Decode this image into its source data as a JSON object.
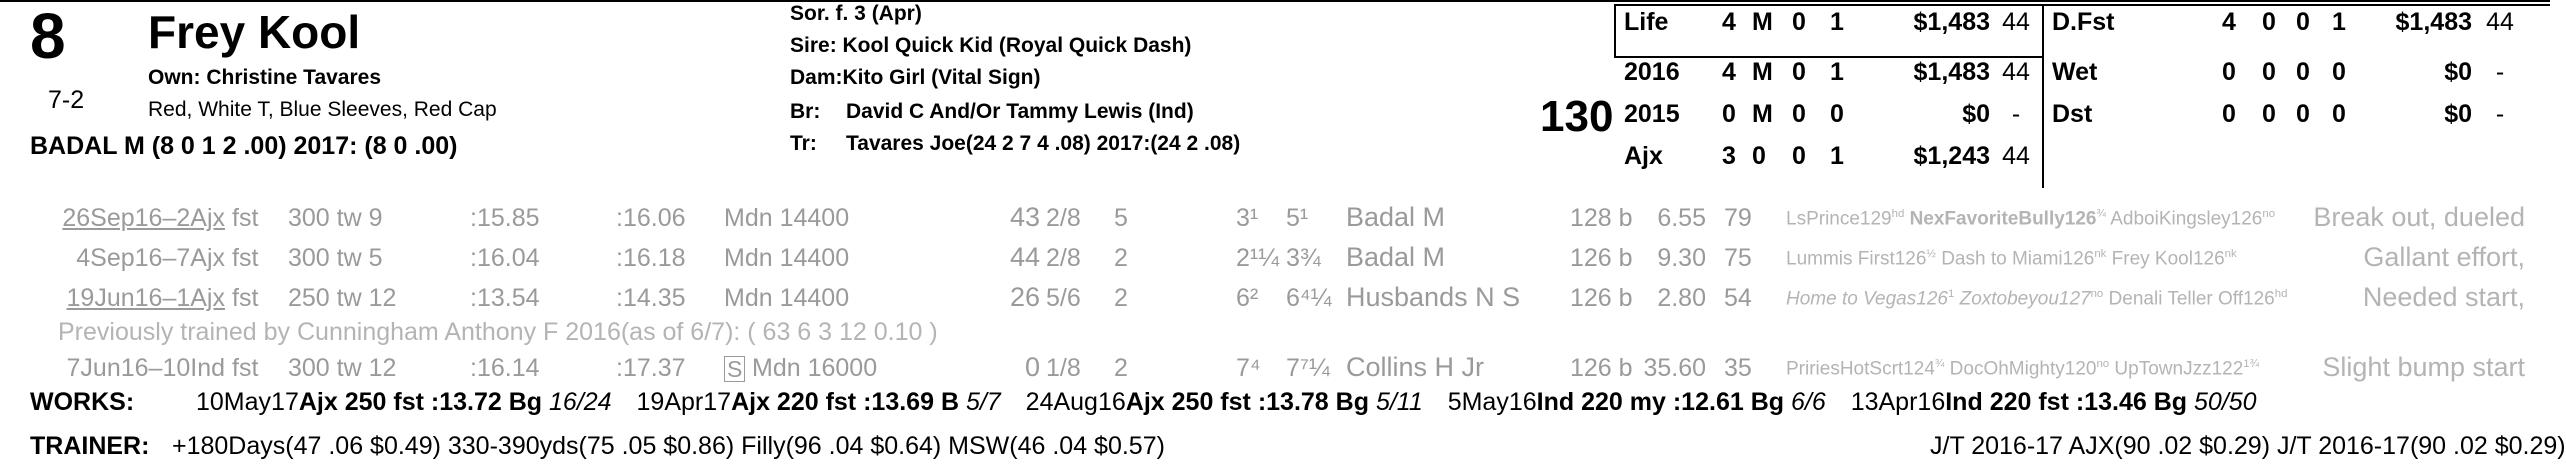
{
  "header": {
    "program_number": "8",
    "horse_name": "Frey Kool",
    "odds": "7-2",
    "owner_label": "Own: Christine Tavares",
    "silks": "Red, White T, Blue Sleeves, Red Cap",
    "jockey": "BADAL M (8 0 1 2 .00) 2017: (8 0 .00)",
    "sex_age": "Sor. f. 3 (Apr)",
    "sire": "Sire: Kool Quick Kid (Royal Quick Dash)",
    "dam": "Dam:Kito Girl (Vital Sign)",
    "breeder_label": "Br:",
    "breeder": "David C And/Or Tammy Lewis (Ind)",
    "trainer_label": "Tr:",
    "trainer": "Tavares Joe(24 2 7 4 .08)  2017:(24 2 .08)",
    "weight": "130"
  },
  "records": [
    {
      "label": "Life",
      "starts": "4",
      "w": "M",
      "p": "0",
      "s": "1",
      "earnings": "$1,483",
      "speed": "44"
    },
    {
      "label": "2016",
      "starts": "4",
      "w": "M",
      "p": "0",
      "s": "1",
      "earnings": "$1,483",
      "speed": "44"
    },
    {
      "label": "2015",
      "starts": "0",
      "w": "M",
      "p": "0",
      "s": "0",
      "earnings": "$0",
      "speed": "-"
    },
    {
      "label": "Ajx",
      "starts": "3",
      "w": "0",
      "p": "0",
      "s": "1",
      "earnings": "$1,243",
      "speed": "44"
    }
  ],
  "surfaces": [
    {
      "label": "D.Fst",
      "starts": "4",
      "w": "0",
      "p": "0",
      "s": "1",
      "earnings": "$1,483",
      "speed": "44"
    },
    {
      "label": "Wet",
      "starts": "0",
      "w": "0",
      "p": "0",
      "s": "0",
      "earnings": "$0",
      "speed": "-"
    },
    {
      "label": "Dst",
      "starts": "0",
      "w": "0",
      "p": "0",
      "s": "0",
      "earnings": "$0",
      "speed": "-"
    }
  ],
  "past_performances": [
    {
      "date": "26Sep16–2Ajx",
      "cond": "fst",
      "dist": "300 tw 9",
      "frac1": ":15.85",
      "frac2": ":16.06",
      "race": "Mdn 14400",
      "bris": "43",
      "pp": "2/8",
      "st": "5",
      "c1": "3¹",
      "c2": "5¹",
      "jockey": "Badal M",
      "wt": "128 b",
      "odds": "6.55",
      "spd": "79",
      "comment": "Break out, dueled"
    },
    {
      "date": "4Sep16–7Ajx",
      "cond": "fst",
      "dist": "300 tw 5",
      "frac1": ":16.04",
      "frac2": ":16.18",
      "race": "Mdn 14400",
      "bris": "44",
      "pp": "2/8",
      "st": "2",
      "c1": "2¹¼",
      "c2": "3¾",
      "jockey": "Badal M",
      "wt": "126 b",
      "odds": "9.30",
      "spd": "75",
      "comment": "Gallant effort,"
    },
    {
      "date": "19Jun16–1Ajx",
      "cond": "fst",
      "dist": "250 tw 12",
      "frac1": ":13.54",
      "frac2": ":14.35",
      "race": "Mdn 14400",
      "bris": "26",
      "pp": "5/6",
      "st": "2",
      "c1": "6²",
      "c2": "6⁴¼",
      "jockey": "Husbands N S",
      "wt": "126 b",
      "odds": "2.80",
      "spd": "54",
      "comment": "Needed start,"
    },
    {
      "date": "7Jun16–10Ind",
      "cond": "fst",
      "dist": "300 tw 12",
      "frac1": ":16.14",
      "frac2": ":17.37",
      "race_prefix": "S",
      "race": "Mdn 16000",
      "bris": "0",
      "pp": "1/8",
      "st": "2",
      "c1": "7⁴",
      "c2": "7⁷¼",
      "jockey": "Collins H Jr",
      "wt": "126 b",
      "odds": "35.60",
      "spd": "35",
      "comment": "Slight bump start"
    }
  ],
  "finishers": [
    {
      "a": "LsPrince129",
      "a_m": "hd",
      "b": "NexFavoriteBully126",
      "b_m": "¾",
      "c": "AdboiKingsley126",
      "c_m": "no"
    },
    {
      "a": "Lummis First126",
      "a_m": "½",
      "b": "Dash to Miami126",
      "b_m": "nk",
      "c": "Frey Kool126",
      "c_m": "nk"
    },
    {
      "a": "Home to Vegas126",
      "a_m": "1",
      "b": "Zoxtobeyou127",
      "b_m": "no",
      "c": "Denali Teller Off126",
      "c_m": "hd"
    },
    {
      "a": "PririesHotScrt124",
      "a_m": "¾",
      "b": "DocOhMighty120",
      "b_m": "no",
      "c": "UpTownJzz122",
      "c_m": "1¾"
    }
  ],
  "previous_trainer": "Previously trained by Cunningham Anthony F 2016(as of 6/7): ( 63 6 3 12 0.10 )",
  "works_label": "WORKS:",
  "works": [
    {
      "date": "10May17",
      "track": "Ajx",
      "dist": "250 fst",
      "time": ":13.72",
      "grade": "Bg",
      "rank": "16/24"
    },
    {
      "date": "19Apr17",
      "track": "Ajx",
      "dist": "220 fst",
      "time": ":13.69",
      "grade": "B",
      "rank": "5/7"
    },
    {
      "date": "24Aug16",
      "track": "Ajx",
      "dist": "250 fst",
      "time": ":13.78",
      "grade": "Bg",
      "rank": "5/11"
    },
    {
      "date": "5May16",
      "track": "Ind",
      "dist": "220 my",
      "time": ":12.61",
      "grade": "Bg",
      "rank": "6/6"
    },
    {
      "date": "13Apr16",
      "track": "Ind",
      "dist": "220 fst",
      "time": ":13.46",
      "grade": "Bg",
      "rank": "50/50"
    }
  ],
  "trainer_stats": {
    "label": "TRAINER:",
    "text": "+180Days(47 .06 $0.49) 330-390yds(75 .05 $0.86) Filly(96 .04 $0.64) MSW(46 .04 $0.57)",
    "jt": "J/T 2016-17 AJX(90 .02 $0.29)  J/T 2016-17(90 .02 $0.29)"
  }
}
